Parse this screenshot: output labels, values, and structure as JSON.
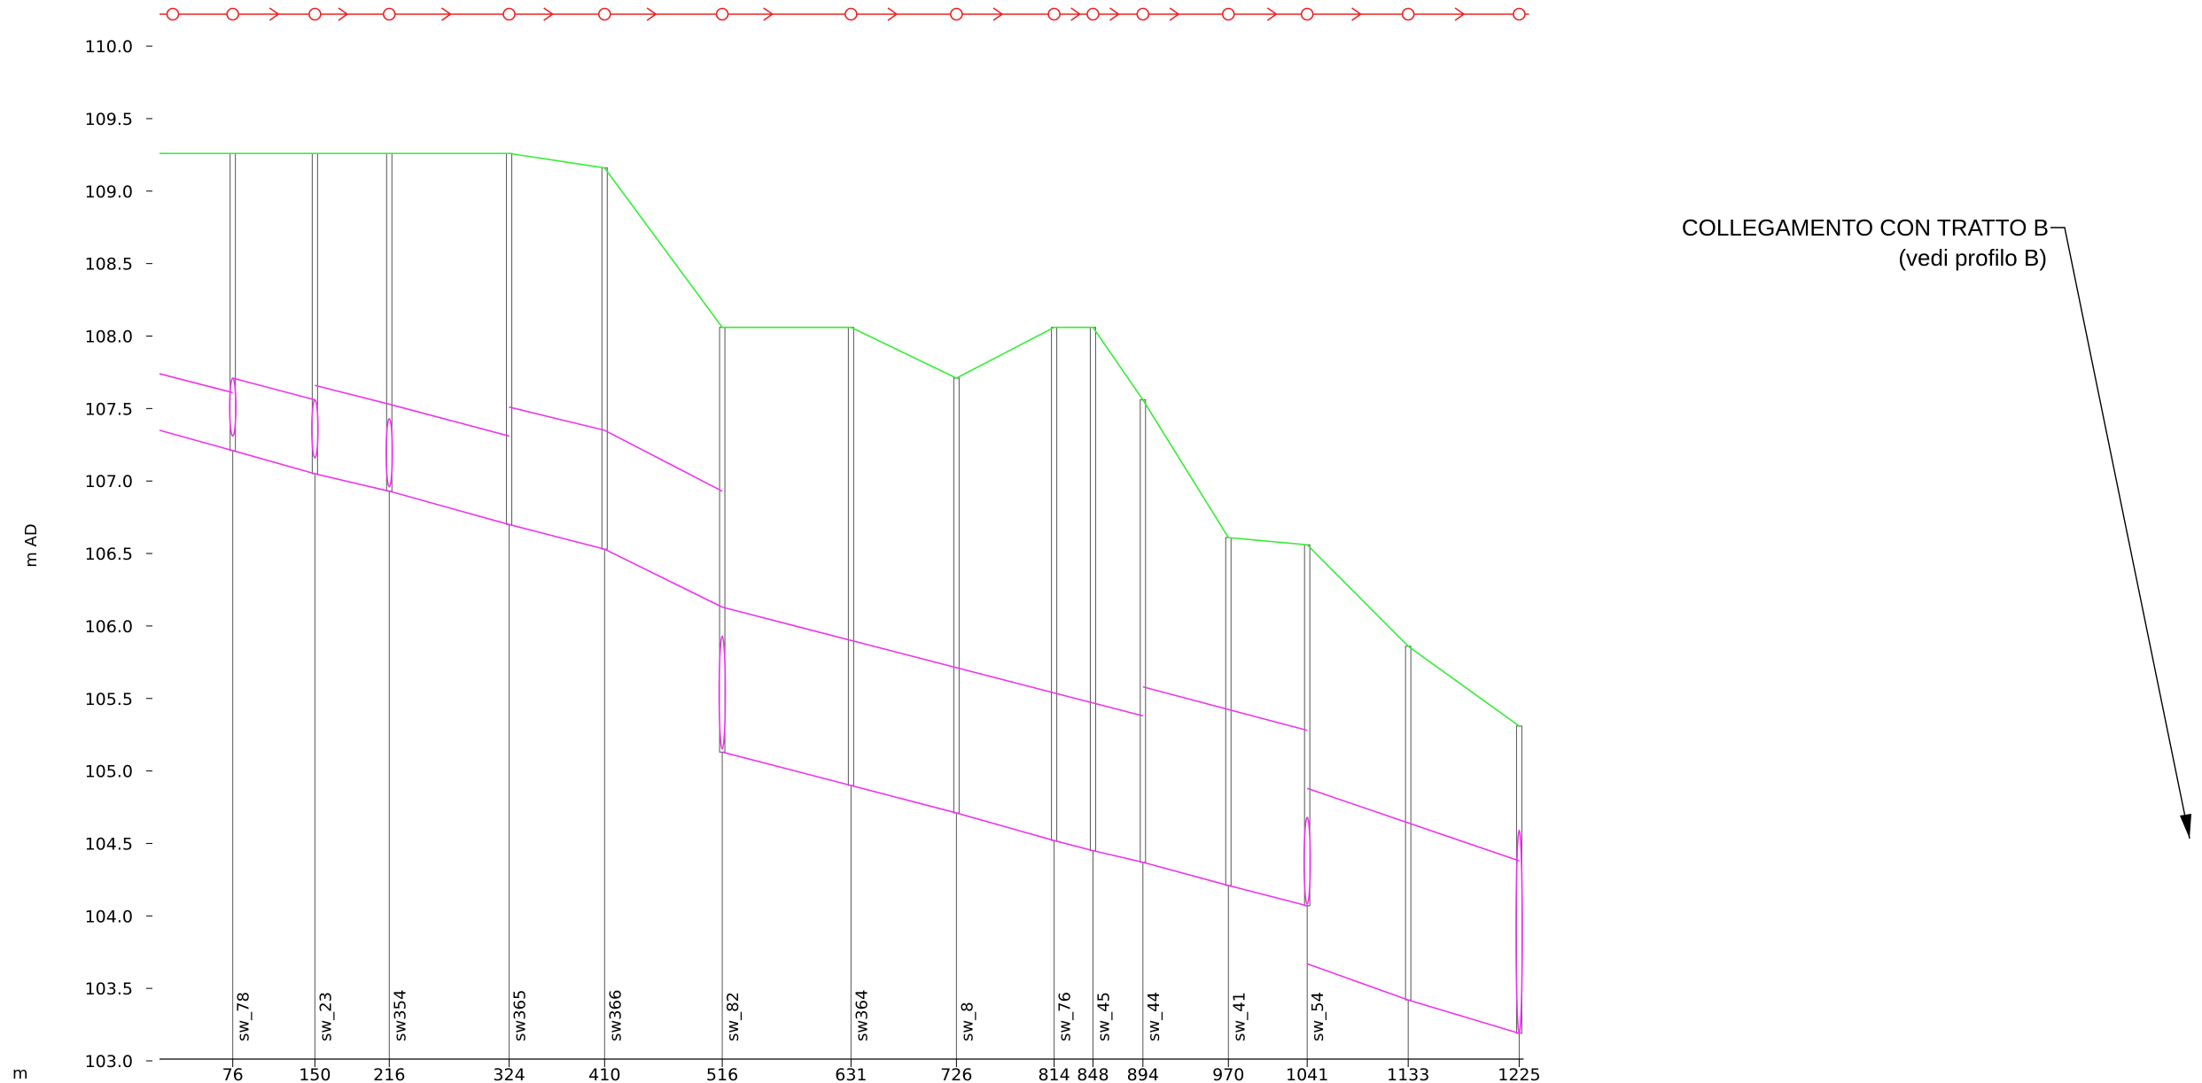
{
  "title": "",
  "y_axis_label": "m AD",
  "x_axis_unit": "m",
  "annotation": {
    "line1": "COLLEGAMENTO CON TRATTO B",
    "line2": "(vedi profilo B)"
  },
  "colors": {
    "ground": "#33ee33",
    "pipe": "#ee33ee",
    "direction": "#ee2222",
    "manhole": "#555555",
    "axis": "#000000",
    "annotation": "#000000"
  },
  "chart_data": {
    "type": "line",
    "title": "",
    "ylabel": "m AD",
    "xlabel": "m",
    "ylim": [
      103.0,
      110.0
    ],
    "xlim": [
      0,
      1229
    ],
    "y_ticks": [
      "103.0",
      "103.5",
      "104.0",
      "104.5",
      "105.0",
      "105.5",
      "106.0",
      "106.5",
      "107.0",
      "107.5",
      "108.0",
      "108.5",
      "109.0",
      "109.5",
      "110.0"
    ],
    "nodes": [
      {
        "name": "sw_78",
        "x_label": "76",
        "chainage": 66,
        "ground": 109.26,
        "invert": 107.21
      },
      {
        "name": "sw_23",
        "x_label": "150",
        "chainage": 140,
        "ground": 109.26,
        "invert": 107.05
      },
      {
        "name": "sw354",
        "x_label": "216",
        "chainage": 207,
        "ground": 109.26,
        "invert": 106.93
      },
      {
        "name": "sw365",
        "x_label": "324",
        "chainage": 315,
        "ground": 109.26,
        "invert": 106.7
      },
      {
        "name": "sw366",
        "x_label": "410",
        "chainage": 401,
        "ground": 109.16,
        "invert": 106.53
      },
      {
        "name": "sw_82",
        "x_label": "516",
        "chainage": 507,
        "ground": 108.06,
        "invert": 105.13
      },
      {
        "name": "sw364",
        "x_label": "631",
        "chainage": 623,
        "ground": 108.06,
        "invert": 104.9
      },
      {
        "name": "sw_8",
        "x_label": "726",
        "chainage": 718,
        "ground": 107.71,
        "invert": 104.71
      },
      {
        "name": "sw_76",
        "x_label": "814",
        "chainage": 806,
        "ground": 108.06,
        "invert": 104.52
      },
      {
        "name": "sw_45",
        "x_label": "848",
        "chainage": 841,
        "ground": 108.06,
        "invert": 104.45
      },
      {
        "name": "sw_44",
        "x_label": "894",
        "chainage": 886,
        "ground": 107.56,
        "invert": 104.37
      },
      {
        "name": "sw_41",
        "x_label": "970",
        "chainage": 963,
        "ground": 106.61,
        "invert": 104.21
      },
      {
        "name": "sw_54",
        "x_label": "1041",
        "chainage": 1034,
        "ground": 106.56,
        "invert": 104.07
      },
      {
        "name": "",
        "x_label": "1133",
        "chainage": 1125,
        "ground": 105.86,
        "invert": 103.42
      },
      {
        "name": "",
        "x_label": "1225",
        "chainage": 1225,
        "ground": 105.31,
        "invert": 103.19
      }
    ],
    "series": [
      {
        "points": [
          [
            0,
            109.26
          ],
          [
            66,
            109.26
          ],
          [
            140,
            109.26
          ],
          [
            207,
            109.26
          ],
          [
            315,
            109.26
          ],
          [
            401,
            109.16
          ],
          [
            507,
            108.06
          ],
          [
            623,
            108.06
          ],
          [
            718,
            107.71
          ],
          [
            806,
            108.06
          ],
          [
            841,
            108.06
          ],
          [
            886,
            107.56
          ],
          [
            963,
            106.61
          ],
          [
            1034,
            106.56
          ],
          [
            1125,
            105.86
          ],
          [
            1225,
            105.31
          ]
        ]
      },
      {
        "segments": [
          [
            [
              0,
              107.74
            ],
            [
              66,
              107.61
            ]
          ],
          [
            [
              66,
              107.71
            ],
            [
              140,
              107.56
            ]
          ],
          [
            [
              140,
              107.66
            ],
            [
              207,
              107.53
            ]
          ],
          [
            [
              207,
              107.53
            ],
            [
              315,
              107.31
            ]
          ],
          [
            [
              315,
              107.51
            ],
            [
              401,
              107.35
            ]
          ],
          [
            [
              401,
              107.35
            ],
            [
              507,
              106.93
            ]
          ],
          [
            [
              507,
              106.13
            ],
            [
              886,
              105.38
            ]
          ],
          [
            [
              886,
              105.58
            ],
            [
              1034,
              105.28
            ]
          ],
          [
            [
              1034,
              104.88
            ],
            [
              1225,
              104.38
            ]
          ]
        ]
      },
      {
        "points": [
          [
            0,
            107.35
          ],
          [
            66,
            107.21
          ],
          [
            140,
            107.05
          ],
          [
            207,
            106.93
          ],
          [
            315,
            106.7
          ],
          [
            401,
            106.53
          ],
          [
            507,
            106.13
          ]
        ],
        "points2": [
          [
            507,
            105.13
          ],
          [
            623,
            104.9
          ],
          [
            718,
            104.71
          ],
          [
            806,
            104.52
          ],
          [
            841,
            104.45
          ],
          [
            886,
            104.37
          ],
          [
            963,
            104.21
          ],
          [
            1034,
            104.07
          ]
        ],
        "points3": [
          [
            1034,
            103.67
          ],
          [
            1125,
            103.42
          ],
          [
            1225,
            103.19
          ]
        ]
      }
    ],
    "drops": [
      {
        "chainage": 66,
        "top": 107.71,
        "bottom": 107.31
      },
      {
        "chainage": 140,
        "top": 107.56,
        "bottom": 107.16
      },
      {
        "chainage": 207,
        "top": 107.43,
        "bottom": 106.96
      },
      {
        "chainage": 507,
        "top": 105.93,
        "bottom": 105.15
      },
      {
        "chainage": 1034,
        "top": 104.68,
        "bottom": 104.08
      },
      {
        "chainage": 1225,
        "top": 104.59,
        "bottom": 103.19
      }
    ],
    "flow_markers": [
      12,
      66,
      104,
      140,
      166,
      207,
      259,
      315,
      351,
      401,
      444,
      507,
      549,
      623,
      661,
      718,
      756,
      806,
      826,
      841,
      861,
      886,
      915,
      963,
      1003,
      1034,
      1079,
      1125,
      1172,
      1225
    ],
    "flow_marker_types": [
      "circle",
      "circle",
      "arrow",
      "circle",
      "arrow",
      "circle",
      "arrow",
      "circle",
      "arrow",
      "circle",
      "arrow",
      "circle",
      "arrow",
      "circle",
      "arrow",
      "circle",
      "arrow",
      "circle",
      "arrow",
      "circle",
      "arrow",
      "circle",
      "arrow",
      "circle",
      "arrow",
      "circle",
      "arrow",
      "circle",
      "arrow",
      "circle"
    ],
    "grid": false,
    "legend": "none"
  }
}
